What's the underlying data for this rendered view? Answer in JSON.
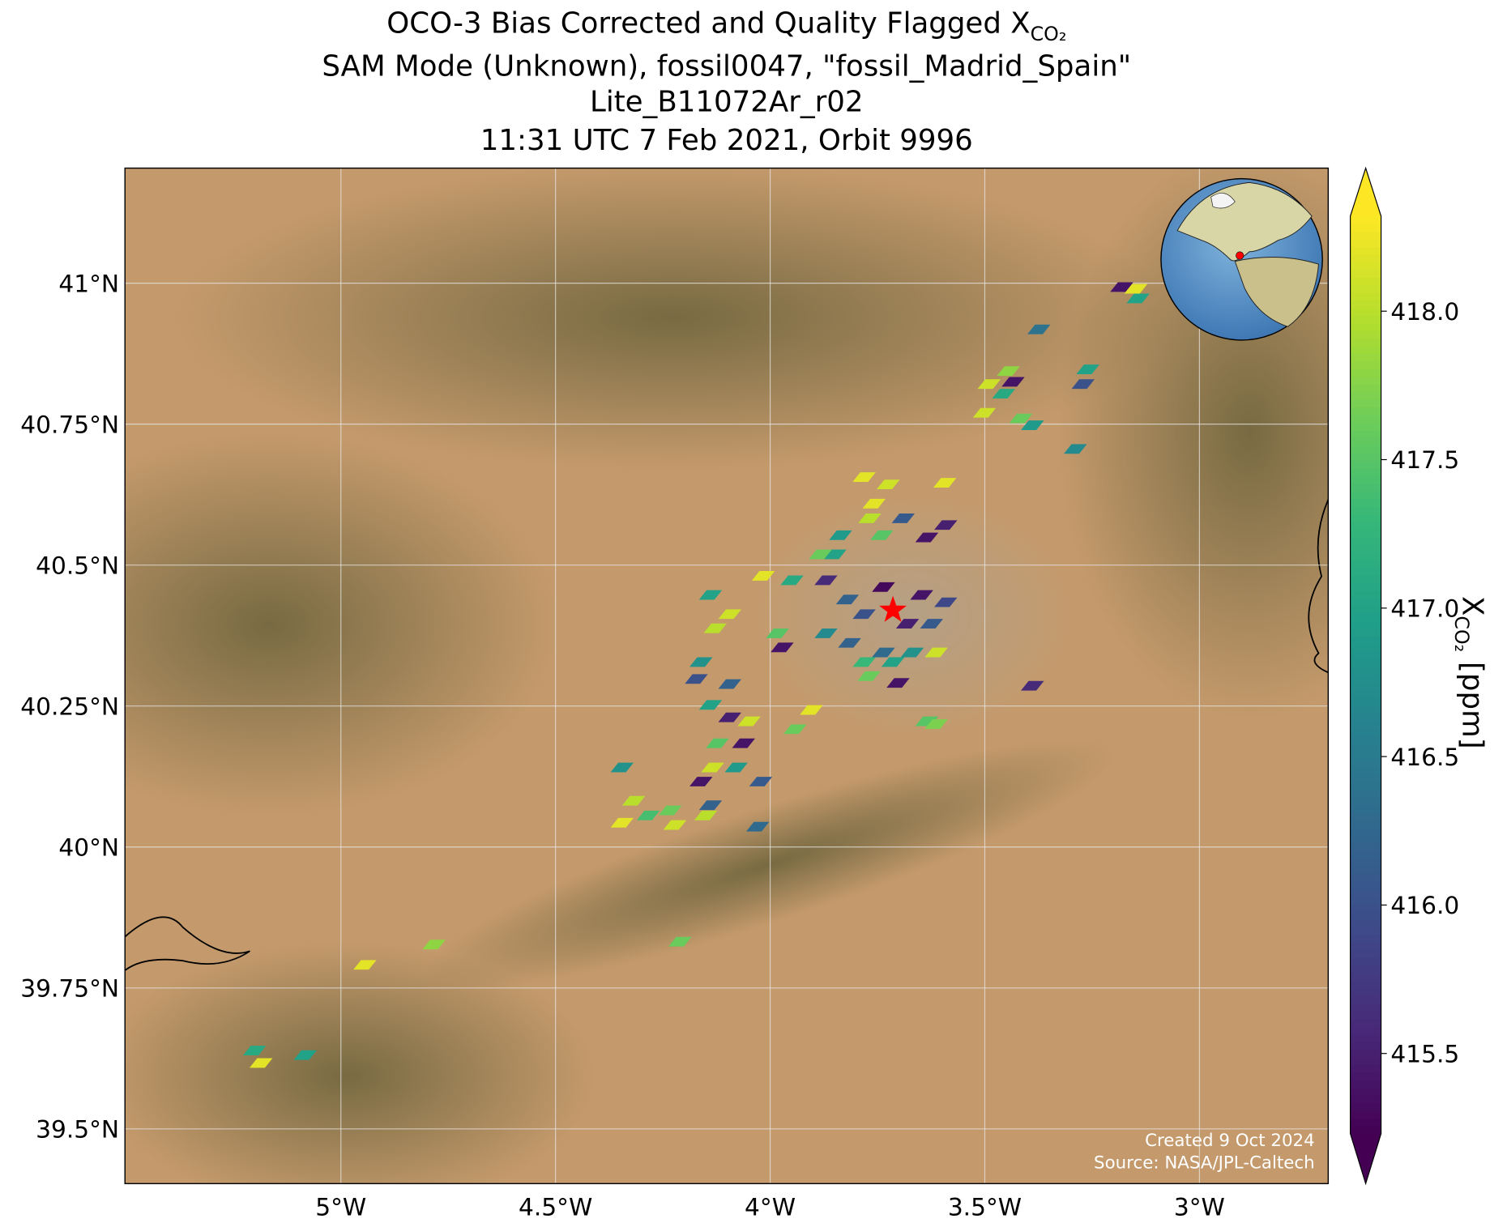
{
  "title": {
    "line1": "OCO-3 Bias Corrected and Quality Flagged X",
    "line1_subscript": "CO₂",
    "line2": "SAM Mode (Unknown), fossil0047, \"fossil_Madrid_Spain\"",
    "line3": "Lite_B11072Ar_r02",
    "line4": "11:31 UTC 7 Feb 2021, Orbit 9996"
  },
  "map": {
    "xlim": [
      -5.503,
      -2.7
    ],
    "ylim": [
      39.403,
      41.204
    ],
    "xticks": [
      {
        "value": -5,
        "label": "5°W"
      },
      {
        "value": -4.5,
        "label": "4.5°W"
      },
      {
        "value": -4,
        "label": "4°W"
      },
      {
        "value": -3.5,
        "label": "3.5°W"
      },
      {
        "value": -3,
        "label": "3°W"
      }
    ],
    "yticks": [
      {
        "value": 39.5,
        "label": "39.5°N"
      },
      {
        "value": 39.75,
        "label": "39.75°N"
      },
      {
        "value": 40,
        "label": "40°N"
      },
      {
        "value": 40.25,
        "label": "40.25°N"
      },
      {
        "value": 40.5,
        "label": "40.5°N"
      },
      {
        "value": 40.75,
        "label": "40.75°N"
      },
      {
        "value": 41,
        "label": "41°N"
      }
    ],
    "target": {
      "lon": -3.714,
      "lat": 40.42,
      "color": "#ff0000"
    }
  },
  "colorbar": {
    "colormap": "viridis",
    "lim": [
      415.23,
      418.32
    ],
    "ticks": [
      {
        "value": 415.5,
        "label": "415.5"
      },
      {
        "value": 416,
        "label": "416.0"
      },
      {
        "value": 416.5,
        "label": "416.5"
      },
      {
        "value": 417,
        "label": "417.0"
      },
      {
        "value": 417.5,
        "label": "417.5"
      },
      {
        "value": 418,
        "label": "418.0"
      }
    ],
    "label": "X",
    "label_subscript": "CO₂",
    "label_unit": "[ppm]"
  },
  "credits": {
    "line1": "Created 9 Oct 2024",
    "line2": "Source: NASA/JPL-Caltech"
  },
  "soundings": [
    {
      "lon": -3.181,
      "lat": 40.993,
      "value": 415.4
    },
    {
      "lon": -3.148,
      "lat": 40.99,
      "value": 418.2
    },
    {
      "lon": -3.143,
      "lat": 40.973,
      "value": 417.0
    },
    {
      "lon": -3.374,
      "lat": 40.918,
      "value": 416.4
    },
    {
      "lon": -3.445,
      "lat": 40.844,
      "value": 417.8
    },
    {
      "lon": -3.49,
      "lat": 40.821,
      "value": 418.1
    },
    {
      "lon": -3.456,
      "lat": 40.804,
      "value": 417.1
    },
    {
      "lon": -3.434,
      "lat": 40.825,
      "value": 415.4
    },
    {
      "lon": -3.26,
      "lat": 40.847,
      "value": 417.0
    },
    {
      "lon": -3.271,
      "lat": 40.821,
      "value": 416.0
    },
    {
      "lon": -3.501,
      "lat": 40.77,
      "value": 418.1
    },
    {
      "lon": -3.416,
      "lat": 40.76,
      "value": 417.6
    },
    {
      "lon": -3.389,
      "lat": 40.748,
      "value": 416.9
    },
    {
      "lon": -3.289,
      "lat": 40.706,
      "value": 416.7
    },
    {
      "lon": -3.781,
      "lat": 40.656,
      "value": 418.2
    },
    {
      "lon": -3.725,
      "lat": 40.643,
      "value": 418.1
    },
    {
      "lon": -3.593,
      "lat": 40.646,
      "value": 418.2
    },
    {
      "lon": -3.758,
      "lat": 40.609,
      "value": 418.2
    },
    {
      "lon": -3.768,
      "lat": 40.583,
      "value": 418.0
    },
    {
      "lon": -3.69,
      "lat": 40.583,
      "value": 416.1
    },
    {
      "lon": -3.591,
      "lat": 40.571,
      "value": 415.5
    },
    {
      "lon": -3.836,
      "lat": 40.553,
      "value": 416.9
    },
    {
      "lon": -3.74,
      "lat": 40.553,
      "value": 417.5
    },
    {
      "lon": -3.635,
      "lat": 40.549,
      "value": 415.4
    },
    {
      "lon": -3.849,
      "lat": 40.519,
      "value": 417.0
    },
    {
      "lon": -3.883,
      "lat": 40.519,
      "value": 417.6
    },
    {
      "lon": -4.016,
      "lat": 40.481,
      "value": 418.2
    },
    {
      "lon": -3.949,
      "lat": 40.473,
      "value": 417.1
    },
    {
      "lon": -3.87,
      "lat": 40.473,
      "value": 415.6
    },
    {
      "lon": -3.736,
      "lat": 40.461,
      "value": 415.3
    },
    {
      "lon": -3.647,
      "lat": 40.447,
      "value": 415.4
    },
    {
      "lon": -3.591,
      "lat": 40.434,
      "value": 415.9
    },
    {
      "lon": -3.82,
      "lat": 40.439,
      "value": 416.2
    },
    {
      "lon": -3.781,
      "lat": 40.413,
      "value": 416.0
    },
    {
      "lon": -3.68,
      "lat": 40.396,
      "value": 415.5
    },
    {
      "lon": -3.624,
      "lat": 40.396,
      "value": 416.1
    },
    {
      "lon": -3.87,
      "lat": 40.379,
      "value": 416.7
    },
    {
      "lon": -3.815,
      "lat": 40.362,
      "value": 416.2
    },
    {
      "lon": -3.736,
      "lat": 40.345,
      "value": 416.3
    },
    {
      "lon": -3.669,
      "lat": 40.345,
      "value": 416.8
    },
    {
      "lon": -3.781,
      "lat": 40.328,
      "value": 417.3
    },
    {
      "lon": -3.714,
      "lat": 40.328,
      "value": 417.0
    },
    {
      "lon": -3.77,
      "lat": 40.303,
      "value": 417.6
    },
    {
      "lon": -3.702,
      "lat": 40.291,
      "value": 415.4
    },
    {
      "lon": -3.613,
      "lat": 40.345,
      "value": 418.1
    },
    {
      "lon": -4.139,
      "lat": 40.447,
      "value": 417.0
    },
    {
      "lon": -4.094,
      "lat": 40.413,
      "value": 418.1
    },
    {
      "lon": -4.128,
      "lat": 40.388,
      "value": 418.0
    },
    {
      "lon": -3.983,
      "lat": 40.379,
      "value": 417.5
    },
    {
      "lon": -3.972,
      "lat": 40.354,
      "value": 415.4
    },
    {
      "lon": -4.161,
      "lat": 40.328,
      "value": 416.8
    },
    {
      "lon": -4.172,
      "lat": 40.298,
      "value": 416.0
    },
    {
      "lon": -4.094,
      "lat": 40.289,
      "value": 416.2
    },
    {
      "lon": -4.139,
      "lat": 40.252,
      "value": 417.0
    },
    {
      "lon": -4.094,
      "lat": 40.23,
      "value": 415.5
    },
    {
      "lon": -4.049,
      "lat": 40.223,
      "value": 418.1
    },
    {
      "lon": -3.904,
      "lat": 40.243,
      "value": 418.2
    },
    {
      "lon": -3.942,
      "lat": 40.209,
      "value": 417.6
    },
    {
      "lon": -4.062,
      "lat": 40.184,
      "value": 415.4
    },
    {
      "lon": -4.123,
      "lat": 40.184,
      "value": 417.5
    },
    {
      "lon": -4.134,
      "lat": 40.141,
      "value": 418.1
    },
    {
      "lon": -4.079,
      "lat": 40.141,
      "value": 416.9
    },
    {
      "lon": -4.022,
      "lat": 40.116,
      "value": 416.1
    },
    {
      "lon": -4.161,
      "lat": 40.116,
      "value": 415.4
    },
    {
      "lon": -4.139,
      "lat": 40.074,
      "value": 416.2
    },
    {
      "lon": -4.345,
      "lat": 40.141,
      "value": 416.8
    },
    {
      "lon": -4.318,
      "lat": 40.082,
      "value": 418.0
    },
    {
      "lon": -4.284,
      "lat": 40.056,
      "value": 417.4
    },
    {
      "lon": -4.345,
      "lat": 40.043,
      "value": 418.2
    },
    {
      "lon": -4.233,
      "lat": 40.065,
      "value": 417.6
    },
    {
      "lon": -4.222,
      "lat": 40.039,
      "value": 418.1
    },
    {
      "lon": -4.15,
      "lat": 40.056,
      "value": 418.0
    },
    {
      "lon": -4.029,
      "lat": 40.036,
      "value": 416.3
    },
    {
      "lon": -3.389,
      "lat": 40.286,
      "value": 415.6
    },
    {
      "lon": -3.635,
      "lat": 40.223,
      "value": 417.5
    },
    {
      "lon": -3.613,
      "lat": 40.218,
      "value": 417.7
    },
    {
      "lon": -4.783,
      "lat": 39.827,
      "value": 417.8
    },
    {
      "lon": -4.944,
      "lat": 39.791,
      "value": 418.2
    },
    {
      "lon": -4.21,
      "lat": 39.832,
      "value": 417.6
    },
    {
      "lon": -5.201,
      "lat": 39.639,
      "value": 417.1
    },
    {
      "lon": -5.186,
      "lat": 39.617,
      "value": 418.2
    },
    {
      "lon": -5.083,
      "lat": 39.631,
      "value": 417.0
    }
  ]
}
